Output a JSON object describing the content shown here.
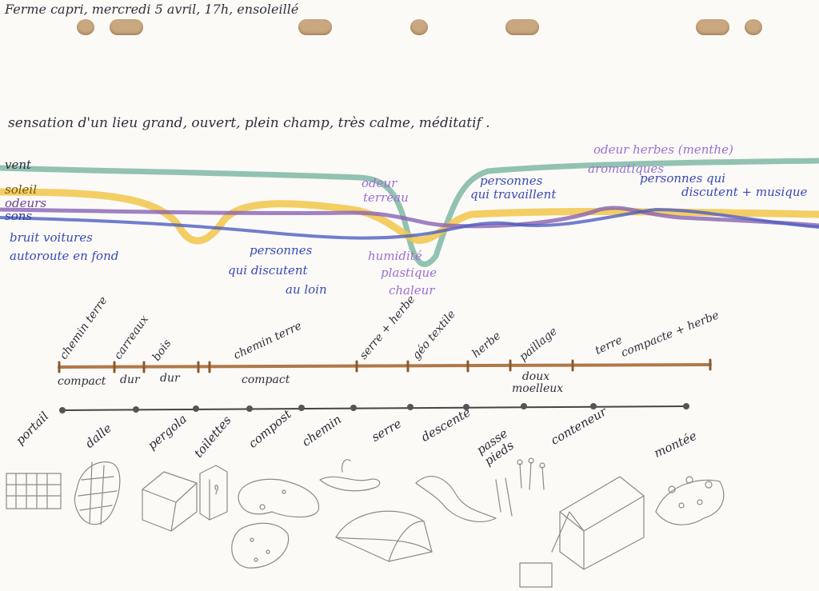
{
  "header": {
    "title": "Ferme capri, mercredi 5 avril, 17h, ensoleillé",
    "impression": "sensation d'un lieu grand, ouvert, plein champ, très calme, méditatif ."
  },
  "colors": {
    "vent": "#7fb7a4",
    "soleil": "#f1c64a",
    "odeurs": "#8a63b3",
    "sons": "#4f5fc0",
    "ground_line": "#b07848",
    "path_line": "#555555",
    "hole": "#c9a77f"
  },
  "sensory_lines": [
    {
      "label": "vent"
    },
    {
      "label": "soleil"
    },
    {
      "label": "odeurs"
    },
    {
      "label": "sons"
    }
  ],
  "annotations": {
    "bruit_voitures_1": "bruit voitures",
    "bruit_voitures_2": "autoroute en fond",
    "personnes_loin_1": "personnes",
    "personnes_loin_2": "qui discutent",
    "personnes_loin_3": "au loin",
    "odeur_terreau_1": "odeur",
    "odeur_terreau_2": "terreau",
    "humidite": "humidité",
    "plastique": "plastique",
    "chaleur": "chaleur",
    "personnes_travail_1": "personnes",
    "personnes_travail_2": "qui travaillent",
    "odeur_herbes_1": "odeur herbes (menthe)",
    "odeur_herbes_2": "aromatiques",
    "personnes_discutent_1": "personnes qui",
    "personnes_discutent_2": "discutent + musique"
  },
  "ground_types": {
    "top": [
      "chemin terre",
      "carreaux",
      "bois",
      "chemin terre",
      "serre + herbe",
      "géo textile",
      "herbe",
      "paillage",
      "terre",
      "compacte + herbe"
    ],
    "bottom": [
      "compact",
      "dur",
      "dur",
      "compact",
      "doux moelleux"
    ]
  },
  "path_stops": [
    "portail",
    "dalle",
    "pergola",
    "toilettes",
    "compost",
    "chemin",
    "serre",
    "descente",
    "passe pieds",
    "conteneur",
    "montée"
  ]
}
